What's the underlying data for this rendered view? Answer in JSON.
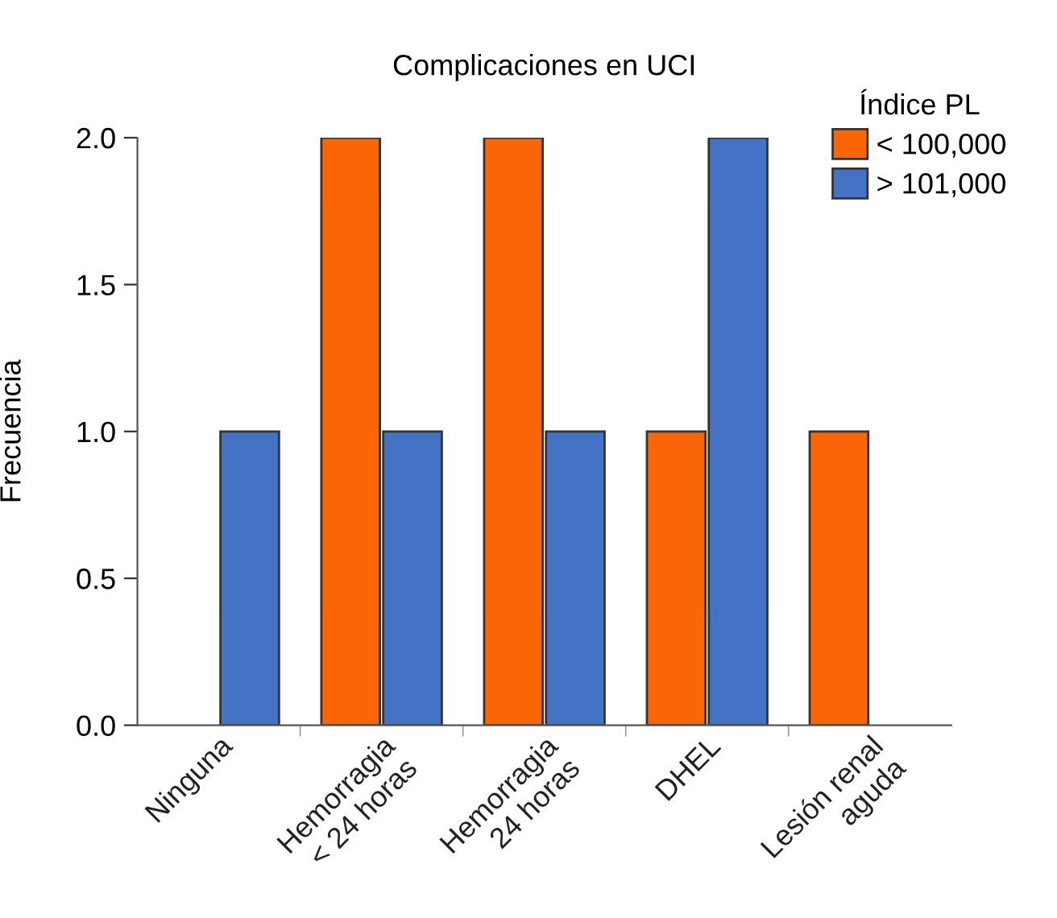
{
  "chart_data": {
    "type": "bar",
    "title": "Complicaciones en UCI",
    "ylabel": "Frecuencia",
    "legend_title": "Índice PL",
    "categories": [
      "Ninguna",
      "Hemorragia\n< 24 horas",
      "Hemorragia\n24 horas",
      "DHEL",
      "Lesión renal\naguda"
    ],
    "series": [
      {
        "name": "< 100,000",
        "color": "#f96507",
        "values": [
          0,
          2,
          2,
          1,
          1
        ]
      },
      {
        "name": "> 101,000",
        "color": "#4472c4",
        "values": [
          1,
          1,
          1,
          2,
          0
        ]
      }
    ],
    "ylim": [
      0,
      2
    ],
    "yticks": [
      {
        "value": 0,
        "label": "0.0"
      },
      {
        "value": 0.5,
        "label": "0.5"
      },
      {
        "value": 1,
        "label": "1.0"
      },
      {
        "value": 1.5,
        "label": "1.5"
      },
      {
        "value": 2,
        "label": "2.0"
      }
    ],
    "grid": false,
    "legend": "top right"
  }
}
